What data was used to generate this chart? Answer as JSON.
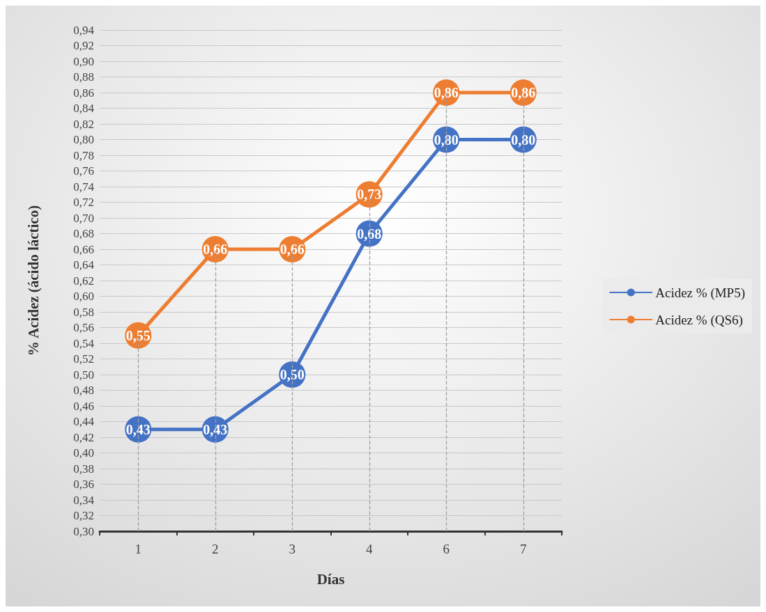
{
  "chart_data": {
    "type": "line",
    "xlabel": "Días",
    "ylabel": "% Acidez (ácido láctico)",
    "categories": [
      "1",
      "2",
      "3",
      "4",
      "6",
      "7"
    ],
    "series": [
      {
        "name": "Acidez % (MP5)",
        "color": "#4472c4",
        "values": [
          0.43,
          0.43,
          0.5,
          0.68,
          0.8,
          0.8
        ],
        "value_labels": [
          "0,43",
          "0,43",
          "0,50",
          "0,68",
          "0,80",
          "0,80"
        ]
      },
      {
        "name": "Acidez % (QS6)",
        "color": "#ed7d31",
        "values": [
          0.55,
          0.66,
          0.66,
          0.73,
          0.86,
          0.86
        ],
        "value_labels": [
          "0,55",
          "0,66",
          "0,66",
          "0,73",
          "0,86",
          "0,86"
        ]
      }
    ],
    "ylim": [
      0.3,
      0.94
    ],
    "yticks": [
      {
        "value": 0.3,
        "label": "0,30"
      },
      {
        "value": 0.32,
        "label": "0,32"
      },
      {
        "value": 0.34,
        "label": "0,34"
      },
      {
        "value": 0.36,
        "label": "0,36"
      },
      {
        "value": 0.38,
        "label": "0,38"
      },
      {
        "value": 0.4,
        "label": "0,40"
      },
      {
        "value": 0.42,
        "label": "0,42"
      },
      {
        "value": 0.44,
        "label": "0,44"
      },
      {
        "value": 0.46,
        "label": "0,46"
      },
      {
        "value": 0.48,
        "label": "0,48"
      },
      {
        "value": 0.5,
        "label": "0,50"
      },
      {
        "value": 0.52,
        "label": "0,52"
      },
      {
        "value": 0.54,
        "label": "0,54"
      },
      {
        "value": 0.56,
        "label": "0,56"
      },
      {
        "value": 0.58,
        "label": "0,58"
      },
      {
        "value": 0.6,
        "label": "0,60"
      },
      {
        "value": 0.62,
        "label": "0,62"
      },
      {
        "value": 0.64,
        "label": "0,64"
      },
      {
        "value": 0.66,
        "label": "0,66"
      },
      {
        "value": 0.68,
        "label": "0,68"
      },
      {
        "value": 0.7,
        "label": "0,70"
      },
      {
        "value": 0.72,
        "label": "0,72"
      },
      {
        "value": 0.74,
        "label": "0,74"
      },
      {
        "value": 0.76,
        "label": "0,76"
      },
      {
        "value": 0.78,
        "label": "0,78"
      },
      {
        "value": 0.8,
        "label": "0,80"
      },
      {
        "value": 0.82,
        "label": "0,82"
      },
      {
        "value": 0.84,
        "label": "0,84"
      },
      {
        "value": 0.86,
        "label": "0,86"
      },
      {
        "value": 0.88,
        "label": "0,88"
      },
      {
        "value": 0.9,
        "label": "0,90"
      },
      {
        "value": 0.92,
        "label": "0,92"
      },
      {
        "value": 0.94,
        "label": "0,94"
      }
    ],
    "grid": true,
    "legend": "right",
    "marker": "circle",
    "line_style": "solid"
  }
}
